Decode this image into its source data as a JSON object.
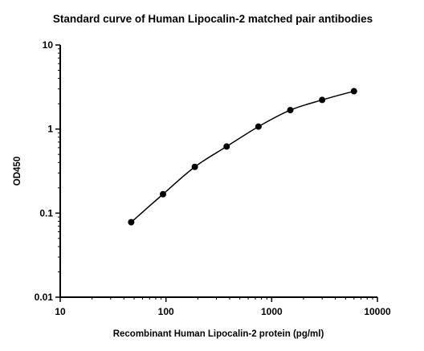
{
  "chart_data": {
    "type": "scatter",
    "title": "Standard curve of Human Lipocalin-2 matched pair antibodies",
    "xlabel": "Recombinant Human Lipocalin-2 protein (pg/ml)",
    "ylabel": "OD450",
    "x_scale": "log",
    "y_scale": "log",
    "xlim": [
      10,
      10000
    ],
    "ylim": [
      0.01,
      10
    ],
    "x_ticks": [
      "10",
      "100",
      "1000",
      "10000"
    ],
    "y_ticks": [
      "0.01",
      "0.1",
      "1",
      "10"
    ],
    "grid": false,
    "fit_curve": true,
    "series": [
      {
        "x": [
          46.9,
          93.75,
          187.5,
          375,
          750,
          1500,
          3000,
          6000
        ],
        "y": [
          0.078,
          0.168,
          0.355,
          0.62,
          1.07,
          1.68,
          2.22,
          2.82
        ]
      }
    ]
  }
}
